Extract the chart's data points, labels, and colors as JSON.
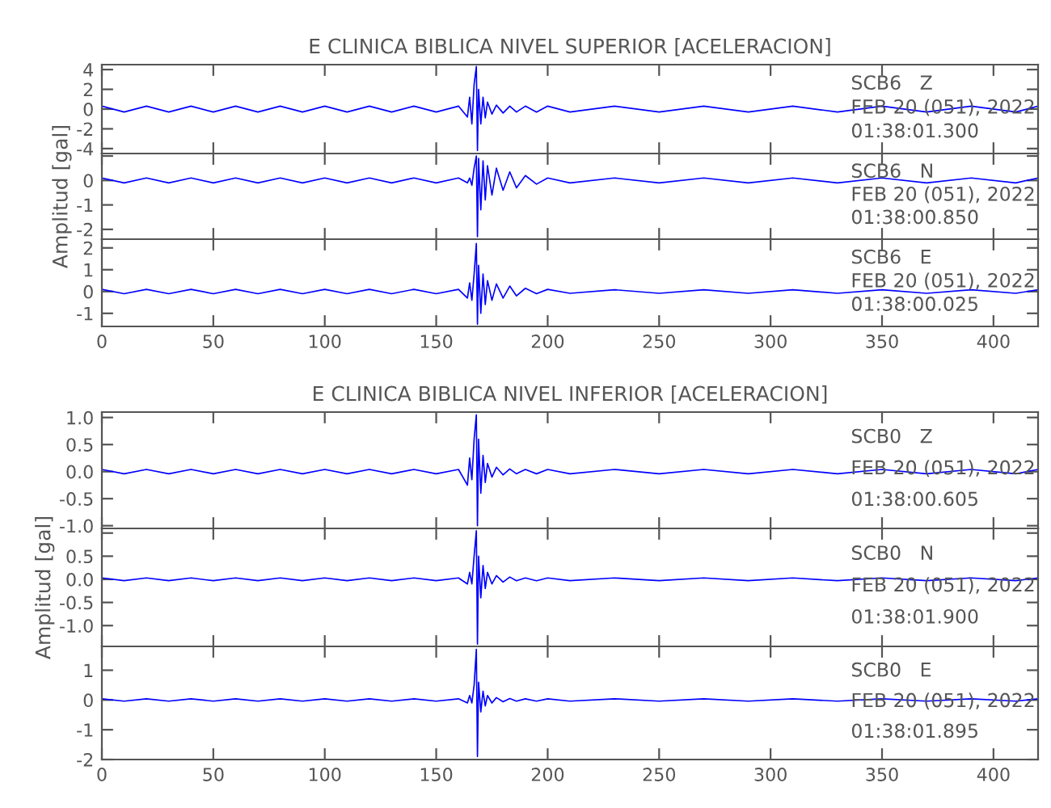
{
  "chart_data": [
    {
      "type": "line",
      "title": "E CLINICA BIBLICA NIVEL SUPERIOR [ACELERACION]",
      "x": [
        0,
        10,
        20,
        30,
        40,
        50,
        60,
        70,
        80,
        90,
        100,
        110,
        120,
        130,
        140,
        150,
        160,
        164,
        165,
        166,
        167,
        168,
        168.5,
        169,
        170,
        171,
        172,
        173,
        175,
        177,
        180,
        183,
        186,
        190,
        195,
        200,
        210,
        230,
        250,
        270,
        290,
        310,
        330,
        350,
        370,
        390,
        410,
        420
      ],
      "series": [
        {
          "color": "#0000ff",
          "values": [
            0.3,
            -0.3,
            0.3,
            -0.3,
            0.3,
            -0.3,
            0.3,
            -0.3,
            0.3,
            -0.3,
            0.3,
            -0.3,
            0.3,
            -0.3,
            0.3,
            -0.3,
            0.3,
            -0.8,
            1.2,
            -1.5,
            2.5,
            4.3,
            -4.2,
            2.0,
            -1.5,
            1.2,
            -0.9,
            0.7,
            -0.5,
            0.4,
            -0.4,
            0.3,
            -0.3,
            0.3,
            -0.3,
            0.3,
            -0.3,
            0.3,
            -0.3,
            0.3,
            -0.3,
            0.3,
            -0.3,
            0.3,
            -0.3,
            0.3,
            -0.3,
            0.3
          ]
        }
      ],
      "xlim": [
        0,
        420
      ],
      "xticks": [
        0,
        50,
        100,
        150,
        200,
        250,
        300,
        350,
        400
      ],
      "ylim": [
        -4.5,
        4.5
      ],
      "yticks": [
        -4,
        -2,
        0,
        2,
        4
      ],
      "tick_labels": "y",
      "annotations": [
        "SCB6   Z",
        "FEB 20 (051), 2022",
        "01:38:01.300"
      ]
    },
    {
      "type": "line",
      "ylabel": "Amplitud [gal]",
      "x": [
        0,
        10,
        20,
        30,
        40,
        50,
        60,
        70,
        80,
        90,
        100,
        110,
        120,
        130,
        140,
        150,
        160,
        164,
        165,
        166,
        167,
        168,
        168.5,
        169,
        170,
        171,
        172,
        173,
        175,
        177,
        180,
        183,
        186,
        190,
        195,
        200,
        210,
        230,
        250,
        270,
        290,
        310,
        330,
        350,
        370,
        390,
        410,
        420
      ],
      "series": [
        {
          "color": "#0000ff",
          "values": [
            0.1,
            -0.1,
            0.1,
            -0.1,
            0.1,
            -0.1,
            0.1,
            -0.1,
            0.1,
            -0.1,
            0.1,
            -0.1,
            0.1,
            -0.1,
            0.1,
            -0.1,
            0.1,
            -0.1,
            0.1,
            -0.2,
            0.5,
            1.0,
            -2.3,
            0.9,
            -1.2,
            0.8,
            -0.8,
            0.6,
            -0.6,
            0.5,
            -0.4,
            0.35,
            -0.3,
            0.2,
            -0.15,
            0.1,
            -0.1,
            0.1,
            -0.1,
            0.1,
            -0.1,
            0.1,
            -0.1,
            0.1,
            -0.1,
            0.1,
            -0.1,
            0.1
          ]
        }
      ],
      "xlim": [
        0,
        420
      ],
      "xticks": [
        0,
        50,
        100,
        150,
        200,
        250,
        300,
        350,
        400
      ],
      "ylim": [
        -2.4,
        1.1
      ],
      "yticks": [
        -2,
        -1,
        0,
        {
          "value": 1,
          "label": null
        }
      ],
      "tick_labels": "y",
      "annotations": [
        "SCB6   N",
        "FEB 20 (051), 2022",
        "01:38:00.850"
      ]
    },
    {
      "type": "line",
      "x": [
        0,
        10,
        20,
        30,
        40,
        50,
        60,
        70,
        80,
        90,
        100,
        110,
        120,
        130,
        140,
        150,
        160,
        164,
        165,
        166,
        167,
        168,
        168.5,
        169,
        170,
        171,
        172,
        173,
        175,
        177,
        180,
        183,
        186,
        190,
        195,
        200,
        210,
        230,
        250,
        270,
        290,
        310,
        330,
        350,
        370,
        390,
        410,
        420
      ],
      "series": [
        {
          "color": "#0000ff",
          "values": [
            0.1,
            -0.1,
            0.1,
            -0.1,
            0.1,
            -0.1,
            0.1,
            -0.1,
            0.1,
            -0.1,
            0.1,
            -0.1,
            0.1,
            -0.1,
            0.1,
            -0.1,
            0.1,
            -0.3,
            0.4,
            -0.4,
            0.8,
            2.2,
            -1.5,
            1.2,
            -1.0,
            0.8,
            -0.6,
            0.5,
            -0.4,
            0.35,
            -0.3,
            0.25,
            -0.2,
            0.15,
            -0.1,
            0.1,
            -0.08,
            0.08,
            -0.08,
            0.08,
            -0.08,
            0.08,
            -0.08,
            0.08,
            -0.08,
            0.08,
            -0.08,
            0.08
          ]
        }
      ],
      "xlim": [
        0,
        420
      ],
      "xticks": [
        0,
        50,
        100,
        150,
        200,
        250,
        300,
        350,
        400
      ],
      "ylim": [
        -1.6,
        2.4
      ],
      "yticks": [
        -1,
        0,
        1,
        2
      ],
      "annotations": [
        "SCB6   E",
        "FEB 20 (051), 2022",
        "01:38:00.025"
      ]
    },
    {
      "type": "line",
      "title": "E CLINICA BIBLICA NIVEL INFERIOR [ACELERACION]",
      "x": [
        0,
        10,
        20,
        30,
        40,
        50,
        60,
        70,
        80,
        90,
        100,
        110,
        120,
        130,
        140,
        150,
        160,
        164,
        165,
        166,
        167,
        168,
        168.5,
        169,
        170,
        171,
        172,
        173,
        175,
        177,
        180,
        183,
        186,
        190,
        195,
        200,
        210,
        230,
        250,
        270,
        290,
        310,
        330,
        350,
        370,
        390,
        410,
        420
      ],
      "series": [
        {
          "color": "#0000ff",
          "values": [
            0.04,
            -0.04,
            0.04,
            -0.04,
            0.04,
            -0.04,
            0.04,
            -0.04,
            0.04,
            -0.04,
            0.04,
            -0.04,
            0.04,
            -0.04,
            0.04,
            -0.04,
            0.04,
            -0.25,
            0.25,
            -0.15,
            0.6,
            1.05,
            -1.0,
            0.6,
            -0.4,
            0.3,
            -0.2,
            0.15,
            -0.1,
            0.08,
            -0.06,
            0.05,
            -0.04,
            0.04,
            -0.04,
            0.04,
            -0.04,
            0.04,
            -0.04,
            0.04,
            -0.04,
            0.04,
            -0.04,
            0.04,
            -0.04,
            0.04,
            -0.04,
            0.04
          ]
        }
      ],
      "xlim": [
        0,
        420
      ],
      "xticks": [
        0,
        50,
        100,
        150,
        200,
        250,
        300,
        350,
        400
      ],
      "ylim": [
        -1.05,
        1.1
      ],
      "yticks": [
        {
          "value": -1,
          "label": "-1.0"
        },
        {
          "value": -0.5,
          "label": "-0.5"
        },
        {
          "value": 0,
          "label": "0.0"
        },
        {
          "value": 0.5,
          "label": "0.5"
        },
        {
          "value": 1,
          "label": "1.0"
        }
      ],
      "tick_labels": "y",
      "annotations": [
        "SCB0   Z",
        "FEB 20 (051), 2022",
        "01:38:00.605"
      ]
    },
    {
      "type": "line",
      "ylabel": "Amplitud [gal]",
      "x": [
        0,
        10,
        20,
        30,
        40,
        50,
        60,
        70,
        80,
        90,
        100,
        110,
        120,
        130,
        140,
        150,
        160,
        164,
        165,
        166,
        167,
        168,
        168.5,
        169,
        170,
        171,
        172,
        173,
        175,
        177,
        180,
        183,
        186,
        190,
        195,
        200,
        210,
        230,
        250,
        270,
        290,
        310,
        330,
        350,
        370,
        390,
        410,
        420
      ],
      "series": [
        {
          "color": "#0000ff",
          "values": [
            0.03,
            -0.03,
            0.03,
            -0.03,
            0.03,
            -0.03,
            0.03,
            -0.03,
            0.03,
            -0.03,
            0.03,
            -0.03,
            0.03,
            -0.03,
            0.03,
            -0.03,
            0.03,
            -0.1,
            0.15,
            -0.1,
            0.5,
            1.05,
            -1.4,
            0.5,
            -0.4,
            0.3,
            -0.2,
            0.15,
            -0.1,
            0.08,
            -0.06,
            0.05,
            -0.03,
            0.03,
            -0.03,
            0.03,
            -0.03,
            0.03,
            -0.03,
            0.03,
            -0.03,
            0.03,
            -0.03,
            0.03,
            -0.03,
            0.03,
            -0.03,
            0.03
          ]
        }
      ],
      "xlim": [
        0,
        420
      ],
      "xticks": [
        0,
        50,
        100,
        150,
        200,
        250,
        300,
        350,
        400
      ],
      "ylim": [
        -1.45,
        1.1
      ],
      "yticks": [
        {
          "value": -1,
          "label": "-1.0"
        },
        {
          "value": -0.5,
          "label": "-0.5"
        },
        {
          "value": 0,
          "label": "0.0"
        },
        {
          "value": 0.5,
          "label": "0.5"
        },
        {
          "value": 1,
          "label": null
        }
      ],
      "tick_labels": "y",
      "annotations": [
        "SCB0   N",
        "FEB 20 (051), 2022",
        "01:38:01.900"
      ]
    },
    {
      "type": "line",
      "x": [
        0,
        10,
        20,
        30,
        40,
        50,
        60,
        70,
        80,
        90,
        100,
        110,
        120,
        130,
        140,
        150,
        160,
        164,
        165,
        166,
        167,
        168,
        168.5,
        169,
        170,
        171,
        172,
        173,
        175,
        177,
        180,
        183,
        186,
        190,
        195,
        200,
        210,
        230,
        250,
        270,
        290,
        310,
        330,
        350,
        370,
        390,
        410,
        420
      ],
      "series": [
        {
          "color": "#0000ff",
          "values": [
            0.04,
            -0.04,
            0.04,
            -0.04,
            0.04,
            -0.04,
            0.04,
            -0.04,
            0.04,
            -0.04,
            0.04,
            -0.04,
            0.04,
            -0.04,
            0.04,
            -0.04,
            0.04,
            -0.1,
            0.15,
            -0.1,
            0.5,
            1.7,
            -1.9,
            0.6,
            -0.4,
            0.3,
            -0.2,
            0.15,
            -0.1,
            0.08,
            -0.06,
            0.05,
            -0.04,
            0.04,
            -0.04,
            0.04,
            -0.04,
            0.04,
            -0.04,
            0.04,
            -0.04,
            0.04,
            -0.04,
            0.04,
            -0.04,
            0.04,
            -0.04,
            0.04
          ]
        }
      ],
      "xlim": [
        0,
        420
      ],
      "xticks": [
        0,
        50,
        100,
        150,
        200,
        250,
        300,
        350,
        400
      ],
      "ylim": [
        -2,
        1.8
      ],
      "yticks": [
        -2,
        -1,
        0,
        1
      ],
      "annotations": [
        "SCB0   E",
        "FEB 20 (051), 2022",
        "01:38:01.895"
      ]
    }
  ]
}
